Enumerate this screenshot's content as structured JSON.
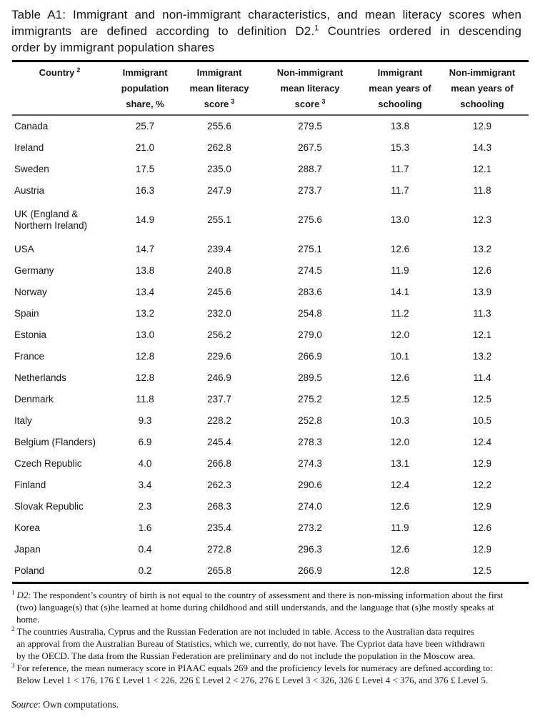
{
  "caption": {
    "lines": [
      {
        "text": "Table A1: Immigrant and non-immigrant characteristics, and mean literacy scores when"
      },
      {
        "pre": "immigrants are defined according to definition D2.",
        "sup": "1",
        "post": " Countries ordered in descending"
      },
      {
        "text": "order by immigrant population shares"
      }
    ]
  },
  "table": {
    "columns": [
      {
        "label": "Country",
        "sup": "2"
      },
      {
        "label": "Immigrant population share, %",
        "sup": ""
      },
      {
        "label": "Immigrant mean literacy score",
        "sup": "3"
      },
      {
        "label": "Non-immigrant mean literacy score",
        "sup": "3"
      },
      {
        "label": "Immigrant mean years of schooling",
        "sup": ""
      },
      {
        "label": "Non-immigrant mean years of schooling",
        "sup": ""
      }
    ],
    "rows": [
      [
        "Canada",
        "25.7",
        "255.6",
        "279.5",
        "13.8",
        "12.9"
      ],
      [
        "Ireland",
        "21.0",
        "262.8",
        "267.5",
        "15.3",
        "14.3"
      ],
      [
        "Sweden",
        "17.5",
        "235.0",
        "288.7",
        "11.7",
        "12.1"
      ],
      [
        "Austria",
        "16.3",
        "247.9",
        "273.7",
        "11.7",
        "11.8"
      ],
      [
        "UK (England & Northern Ireland)",
        "14.9",
        "255.1",
        "275.6",
        "13.0",
        "12.3"
      ],
      [
        "USA",
        "14.7",
        "239.4",
        "275.1",
        "12.6",
        "13.2"
      ],
      [
        "Germany",
        "13.8",
        "240.8",
        "274.5",
        "11.9",
        "12.6"
      ],
      [
        "Norway",
        "13.4",
        "245.6",
        "283.6",
        "14.1",
        "13.9"
      ],
      [
        "Spain",
        "13.2",
        "232.0",
        "254.8",
        "11.2",
        "11.3"
      ],
      [
        "Estonia",
        "13.0",
        "256.2",
        "279.0",
        "12.0",
        "12.1"
      ],
      [
        "France",
        "12.8",
        "229.6",
        "266.9",
        "10.1",
        "13.2"
      ],
      [
        "Netherlands",
        "12.8",
        "246.9",
        "289.5",
        "12.6",
        "11.4"
      ],
      [
        "Denmark",
        "11.8",
        "237.7",
        "275.2",
        "12.5",
        "12.5"
      ],
      [
        "Italy",
        "9.3",
        "228.2",
        "252.8",
        "10.3",
        "10.5"
      ],
      [
        "Belgium (Flanders)",
        "6.9",
        "245.4",
        "278.3",
        "12.0",
        "12.4"
      ],
      [
        "Czech Republic",
        "4.0",
        "266.8",
        "274.3",
        "13.1",
        "12.9"
      ],
      [
        "Finland",
        "3.4",
        "262.3",
        "290.6",
        "12.4",
        "12.2"
      ],
      [
        "Slovak Republic",
        "2.3",
        "268.3",
        "274.0",
        "12.6",
        "12.9"
      ],
      [
        "Korea",
        "1.6",
        "235.4",
        "273.2",
        "11.9",
        "12.6"
      ],
      [
        "Japan",
        "0.4",
        "272.8",
        "296.3",
        "12.6",
        "12.9"
      ],
      [
        "Poland",
        "0.2",
        "265.8",
        "266.9",
        "12.8",
        "12.5"
      ]
    ]
  },
  "footnotes": {
    "fn1": {
      "sup": "1",
      "italic_lead": "D2",
      "lines": [
        ": The respondent’s country of birth is not equal to the country of assessment and there is non-missing information about the first",
        "(two) language(s) that (s)he learned at home during childhood and still understands, and the language that (s)he mostly speaks at",
        "home."
      ]
    },
    "fn2": {
      "sup": "2",
      "italic_lead": "",
      "lines": [
        "The countries Australia, Cyprus and the Russian Federation are not included in table. Access to the Australian data requires",
        "an approval from the Australian Bureau of Statistics, which we, currently, do not have. The Cypriot data have been withdrawn",
        "by the OECD. The data from the Russian Federation are preliminary and do not include the population in the Moscow area."
      ]
    },
    "fn3": {
      "sup": "3",
      "italic_lead": "",
      "lines": [
        "For reference, the mean numeracy score in PIAAC equals 269 and the proficiency levels for numeracy are defined according to:",
        "Below Level 1 < 176, 176 £ Level 1 < 226, 226 £ Level 2 < 276, 276 £ Level 3 < 326, 326 £ Level 4 < 376, and 376 £ Level 5."
      ]
    }
  },
  "source": {
    "italic": "Source",
    "text": ": Own computations."
  }
}
